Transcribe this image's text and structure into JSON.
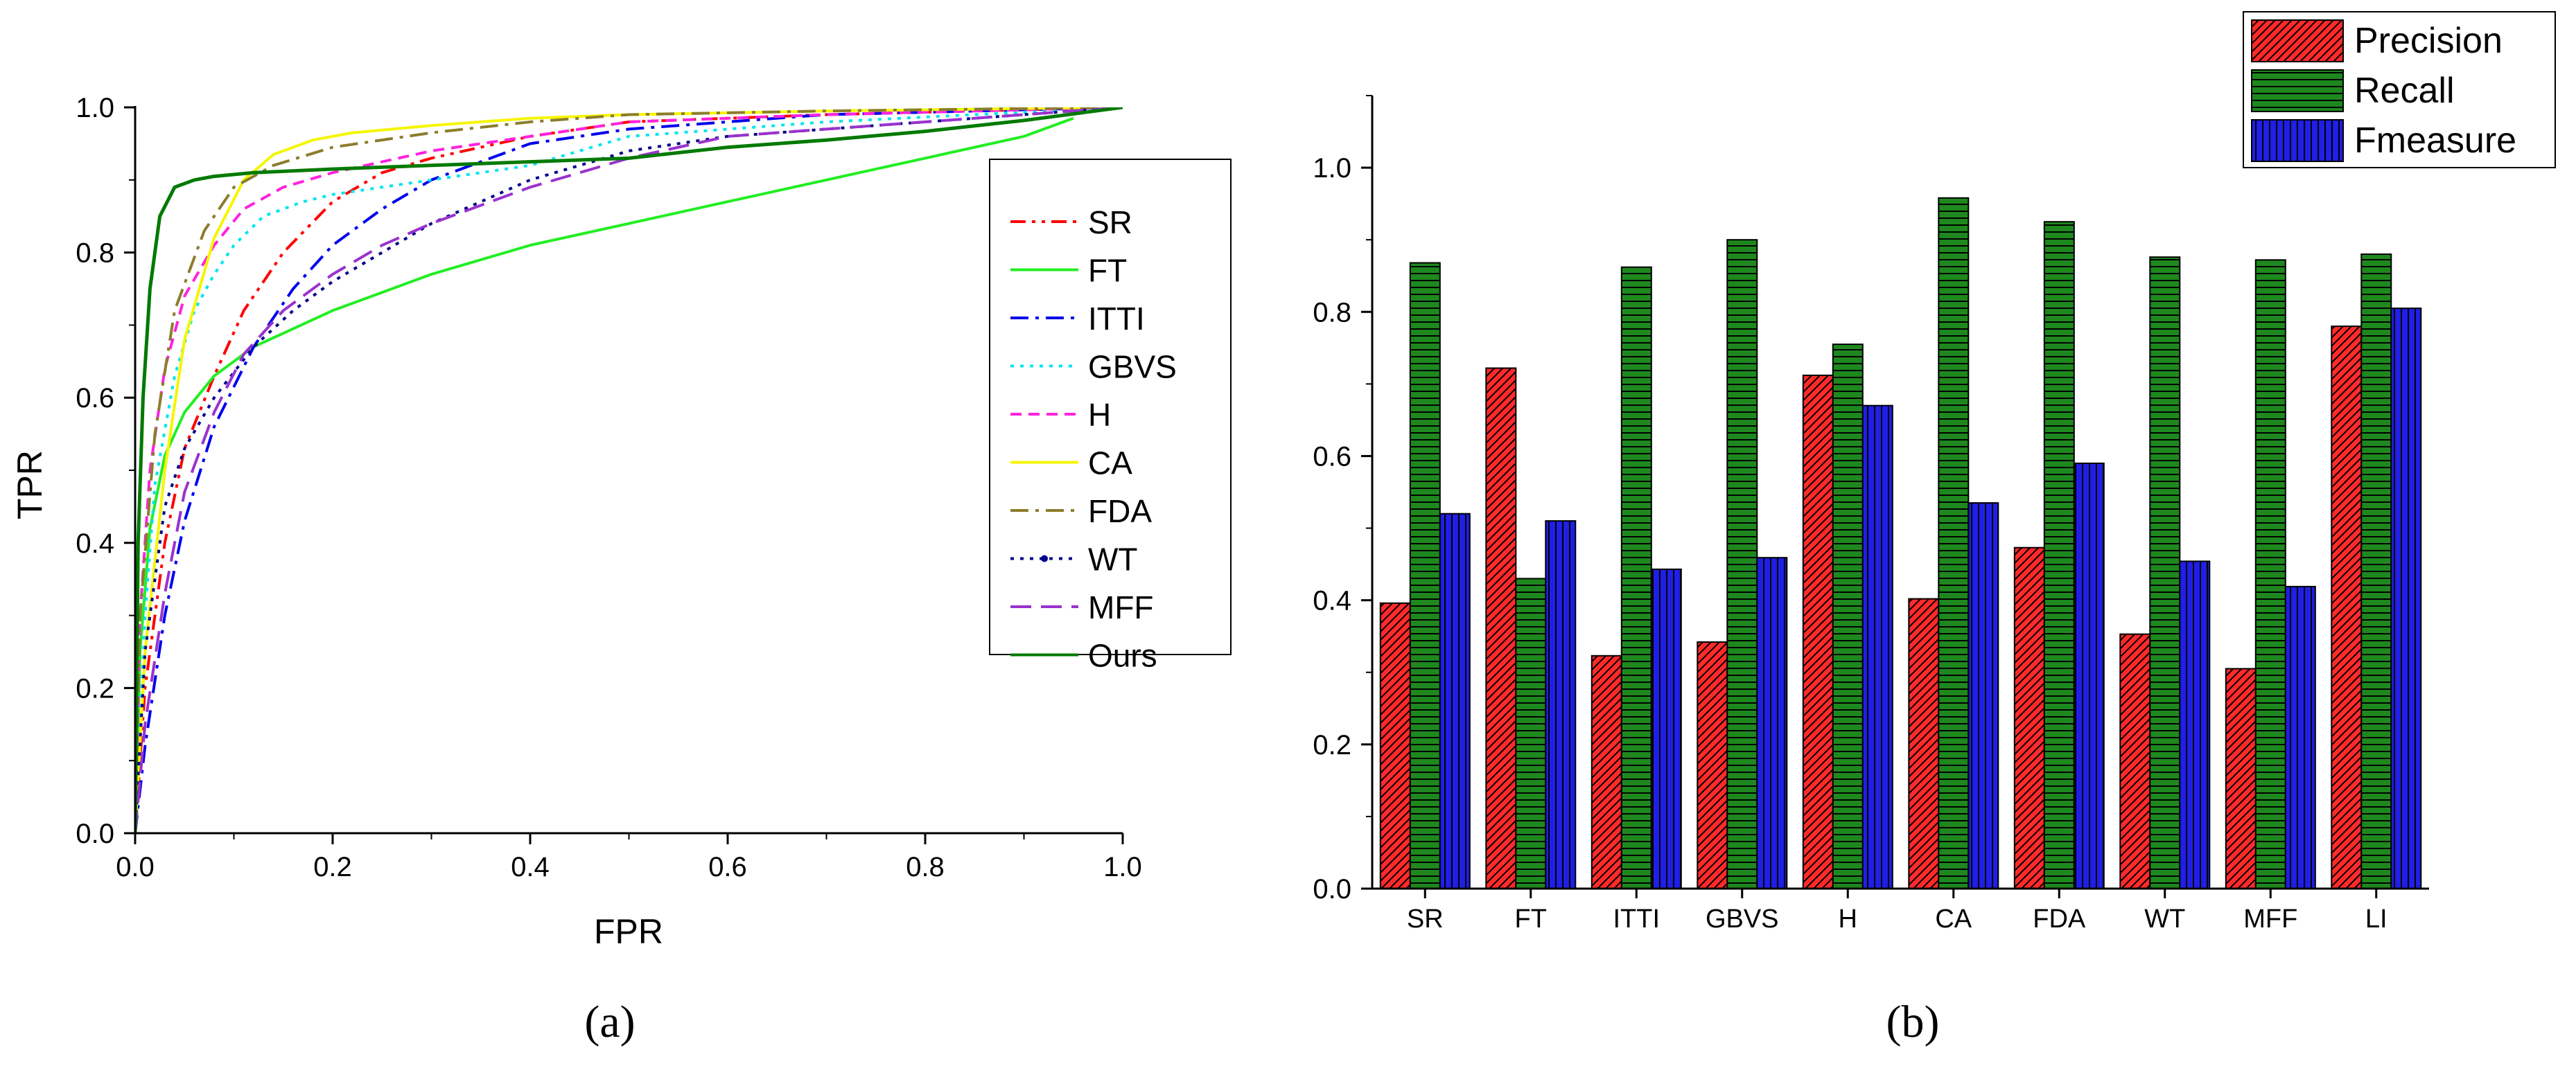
{
  "chart_data": [
    {
      "type": "line",
      "panel": "(a)",
      "xlabel": "FPR",
      "ylabel": "TPR",
      "xlim": [
        0.0,
        1.0
      ],
      "ylim": [
        0.0,
        1.0
      ],
      "xticks": [
        "0.0",
        "0.2",
        "0.4",
        "0.6",
        "0.8",
        "1.0"
      ],
      "yticks": [
        "0.0",
        "0.2",
        "0.4",
        "0.6",
        "0.8",
        "1.0"
      ],
      "legend_position": "right",
      "series": [
        {
          "name": "SR",
          "color": "#ff0000",
          "dash": "dashdotdot",
          "points": [
            [
              0,
              0
            ],
            [
              0.01,
              0.2
            ],
            [
              0.03,
              0.4
            ],
            [
              0.05,
              0.53
            ],
            [
              0.08,
              0.63
            ],
            [
              0.11,
              0.72
            ],
            [
              0.15,
              0.8
            ],
            [
              0.2,
              0.87
            ],
            [
              0.25,
              0.91
            ],
            [
              0.3,
              0.93
            ],
            [
              0.4,
              0.96
            ],
            [
              0.5,
              0.98
            ],
            [
              0.7,
              0.99
            ],
            [
              1,
              1
            ]
          ]
        },
        {
          "name": "FT",
          "color": "#22ee22",
          "dash": "solid",
          "points": [
            [
              0,
              0
            ],
            [
              0.005,
              0.25
            ],
            [
              0.015,
              0.42
            ],
            [
              0.03,
              0.52
            ],
            [
              0.05,
              0.58
            ],
            [
              0.08,
              0.63
            ],
            [
              0.12,
              0.67
            ],
            [
              0.2,
              0.72
            ],
            [
              0.3,
              0.77
            ],
            [
              0.4,
              0.81
            ],
            [
              0.5,
              0.84
            ],
            [
              0.6,
              0.87
            ],
            [
              0.7,
              0.9
            ],
            [
              0.8,
              0.93
            ],
            [
              0.9,
              0.96
            ],
            [
              0.95,
              0.985
            ]
          ]
        },
        {
          "name": "ITTI",
          "color": "#0000ee",
          "dash": "dashdot",
          "points": [
            [
              0,
              0
            ],
            [
              0.01,
              0.12
            ],
            [
              0.03,
              0.3
            ],
            [
              0.05,
              0.43
            ],
            [
              0.08,
              0.56
            ],
            [
              0.12,
              0.67
            ],
            [
              0.16,
              0.75
            ],
            [
              0.2,
              0.81
            ],
            [
              0.25,
              0.86
            ],
            [
              0.3,
              0.9
            ],
            [
              0.4,
              0.95
            ],
            [
              0.5,
              0.97
            ],
            [
              0.7,
              0.99
            ],
            [
              1,
              1
            ]
          ]
        },
        {
          "name": "GBVS",
          "color": "#00e5ee",
          "dash": "dot",
          "points": [
            [
              0,
              0
            ],
            [
              0.01,
              0.3
            ],
            [
              0.02,
              0.48
            ],
            [
              0.04,
              0.63
            ],
            [
              0.06,
              0.72
            ],
            [
              0.08,
              0.77
            ],
            [
              0.1,
              0.81
            ],
            [
              0.13,
              0.85
            ],
            [
              0.17,
              0.87
            ],
            [
              0.2,
              0.88
            ],
            [
              0.3,
              0.9
            ],
            [
              0.4,
              0.92
            ],
            [
              0.5,
              0.96
            ],
            [
              0.7,
              0.98
            ],
            [
              1,
              1
            ]
          ]
        },
        {
          "name": "H",
          "color": "#ff22dd",
          "dash": "dash",
          "points": [
            [
              0,
              0
            ],
            [
              0.005,
              0.3
            ],
            [
              0.015,
              0.5
            ],
            [
              0.03,
              0.64
            ],
            [
              0.05,
              0.74
            ],
            [
              0.08,
              0.81
            ],
            [
              0.11,
              0.86
            ],
            [
              0.15,
              0.89
            ],
            [
              0.2,
              0.91
            ],
            [
              0.3,
              0.94
            ],
            [
              0.4,
              0.96
            ],
            [
              0.5,
              0.98
            ],
            [
              0.7,
              0.99
            ],
            [
              1,
              1
            ]
          ]
        },
        {
          "name": "CA",
          "color": "#f5f500",
          "dash": "solid",
          "points": [
            [
              0,
              0
            ],
            [
              0.01,
              0.25
            ],
            [
              0.03,
              0.5
            ],
            [
              0.05,
              0.68
            ],
            [
              0.08,
              0.82
            ],
            [
              0.11,
              0.9
            ],
            [
              0.14,
              0.935
            ],
            [
              0.18,
              0.955
            ],
            [
              0.22,
              0.965
            ],
            [
              0.3,
              0.975
            ],
            [
              0.4,
              0.985
            ],
            [
              0.5,
              0.99
            ],
            [
              0.7,
              0.995
            ],
            [
              1,
              1
            ]
          ]
        },
        {
          "name": "FDA",
          "color": "#8b7d2c",
          "dash": "dashdot",
          "points": [
            [
              0,
              0
            ],
            [
              0.005,
              0.3
            ],
            [
              0.02,
              0.55
            ],
            [
              0.04,
              0.72
            ],
            [
              0.07,
              0.83
            ],
            [
              0.1,
              0.89
            ],
            [
              0.14,
              0.92
            ],
            [
              0.2,
              0.945
            ],
            [
              0.3,
              0.965
            ],
            [
              0.4,
              0.98
            ],
            [
              0.5,
              0.99
            ],
            [
              0.7,
              0.995
            ],
            [
              1,
              1
            ]
          ]
        },
        {
          "name": "WT",
          "color": "#00008b",
          "dash": "dot",
          "marker": "dot",
          "points": [
            [
              0,
              0
            ],
            [
              0.01,
              0.25
            ],
            [
              0.03,
              0.45
            ],
            [
              0.05,
              0.53
            ],
            [
              0.08,
              0.6
            ],
            [
              0.12,
              0.67
            ],
            [
              0.16,
              0.72
            ],
            [
              0.2,
              0.76
            ],
            [
              0.25,
              0.8
            ],
            [
              0.3,
              0.84
            ],
            [
              0.4,
              0.9
            ],
            [
              0.5,
              0.94
            ],
            [
              0.6,
              0.96
            ],
            [
              0.7,
              0.97
            ],
            [
              0.8,
              0.98
            ],
            [
              1,
              1
            ]
          ]
        },
        {
          "name": "MFF",
          "color": "#9a32cd",
          "dash": "longdash",
          "points": [
            [
              0,
              0
            ],
            [
              0.01,
              0.15
            ],
            [
              0.03,
              0.33
            ],
            [
              0.05,
              0.47
            ],
            [
              0.08,
              0.58
            ],
            [
              0.11,
              0.66
            ],
            [
              0.15,
              0.72
            ],
            [
              0.2,
              0.77
            ],
            [
              0.25,
              0.81
            ],
            [
              0.3,
              0.84
            ],
            [
              0.4,
              0.89
            ],
            [
              0.5,
              0.93
            ],
            [
              0.6,
              0.96
            ],
            [
              0.7,
              0.97
            ],
            [
              0.8,
              0.98
            ],
            [
              1,
              1
            ]
          ]
        },
        {
          "name": "Ours",
          "color": "#007a00",
          "dash": "solid",
          "points": [
            [
              0,
              0
            ],
            [
              0.003,
              0.4
            ],
            [
              0.008,
              0.6
            ],
            [
              0.015,
              0.75
            ],
            [
              0.025,
              0.85
            ],
            [
              0.04,
              0.89
            ],
            [
              0.06,
              0.9
            ],
            [
              0.08,
              0.905
            ],
            [
              0.12,
              0.91
            ],
            [
              0.2,
              0.915
            ],
            [
              0.3,
              0.92
            ],
            [
              0.4,
              0.925
            ],
            [
              0.5,
              0.93
            ],
            [
              0.6,
              0.945
            ],
            [
              0.7,
              0.955
            ],
            [
              0.8,
              0.967
            ],
            [
              0.9,
              0.982
            ],
            [
              1,
              1
            ]
          ]
        }
      ]
    },
    {
      "type": "bar",
      "panel": "(b)",
      "categories": [
        "SR",
        "FT",
        "ITTI",
        "GBVS",
        "H",
        "CA",
        "FDA",
        "WT",
        "MFF",
        "LI"
      ],
      "ylim": [
        0.0,
        1.1
      ],
      "yticks": [
        "0.0",
        "0.2",
        "0.4",
        "0.6",
        "0.8",
        "1.0"
      ],
      "legend_position": "top-right",
      "series": [
        {
          "name": "Precision",
          "color": "#ff2a2a",
          "pattern": "diagonal",
          "values": [
            0.396,
            0.722,
            0.323,
            0.342,
            0.712,
            0.402,
            0.473,
            0.353,
            0.305,
            0.78
          ]
        },
        {
          "name": "Recall",
          "color": "#1e881e",
          "pattern": "horizontal",
          "values": [
            0.868,
            0.43,
            0.862,
            0.9,
            0.755,
            0.958,
            0.925,
            0.876,
            0.872,
            0.88
          ]
        },
        {
          "name": "Fmeasure",
          "color": "#1f1fe6",
          "pattern": "vertical",
          "values": [
            0.52,
            0.51,
            0.443,
            0.459,
            0.67,
            0.535,
            0.59,
            0.454,
            0.419,
            0.805
          ]
        }
      ]
    }
  ]
}
